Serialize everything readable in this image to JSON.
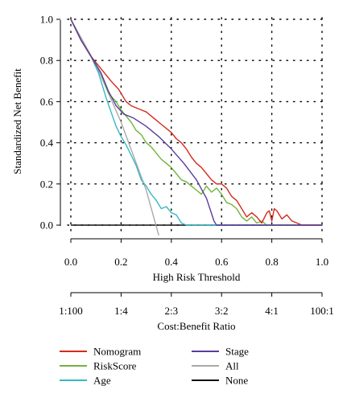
{
  "chart_data": {
    "type": "line",
    "title": "",
    "xlabel": "High Risk Threshold",
    "ylabel": "Standardized Net Benefit",
    "xlim": [
      0.0,
      1.0
    ],
    "ylim": [
      -0.05,
      1.0
    ],
    "x_ticks": [
      "0.0",
      "0.2",
      "0.4",
      "0.6",
      "0.8",
      "1.0"
    ],
    "y_ticks": [
      "0.0",
      "0.2",
      "0.4",
      "0.6",
      "0.8",
      "1.0"
    ],
    "grid": true,
    "secondary_axis": {
      "label": "Cost:Benefit Ratio",
      "ticks": [
        "1:100",
        "1:4",
        "2:3",
        "3:2",
        "4:1",
        "100:1"
      ]
    },
    "legend_position": "bottom",
    "series": [
      {
        "name": "Nomogram",
        "color": "#d42a1e",
        "points": [
          [
            0.0,
            1.0
          ],
          [
            0.04,
            0.9
          ],
          [
            0.08,
            0.82
          ],
          [
            0.12,
            0.76
          ],
          [
            0.16,
            0.7
          ],
          [
            0.19,
            0.66
          ],
          [
            0.2,
            0.64
          ],
          [
            0.22,
            0.6
          ],
          [
            0.24,
            0.58
          ],
          [
            0.26,
            0.57
          ],
          [
            0.28,
            0.56
          ],
          [
            0.3,
            0.55
          ],
          [
            0.32,
            0.53
          ],
          [
            0.34,
            0.51
          ],
          [
            0.36,
            0.49
          ],
          [
            0.38,
            0.47
          ],
          [
            0.4,
            0.45
          ],
          [
            0.42,
            0.42
          ],
          [
            0.44,
            0.4
          ],
          [
            0.46,
            0.37
          ],
          [
            0.48,
            0.33
          ],
          [
            0.5,
            0.3
          ],
          [
            0.52,
            0.28
          ],
          [
            0.54,
            0.25
          ],
          [
            0.56,
            0.22
          ],
          [
            0.58,
            0.2
          ],
          [
            0.6,
            0.2
          ],
          [
            0.62,
            0.18
          ],
          [
            0.64,
            0.14
          ],
          [
            0.66,
            0.12
          ],
          [
            0.68,
            0.08
          ],
          [
            0.7,
            0.04
          ],
          [
            0.72,
            0.06
          ],
          [
            0.74,
            0.04
          ],
          [
            0.76,
            0.01
          ],
          [
            0.78,
            0.06
          ],
          [
            0.79,
            0.07
          ],
          [
            0.8,
            0.02
          ],
          [
            0.81,
            0.08
          ],
          [
            0.82,
            0.07
          ],
          [
            0.84,
            0.03
          ],
          [
            0.86,
            0.05
          ],
          [
            0.88,
            0.02
          ],
          [
            0.9,
            0.01
          ],
          [
            0.92,
            0.0
          ],
          [
            1.0,
            0.0
          ]
        ]
      },
      {
        "name": "RiskScore",
        "color": "#72b43c",
        "points": [
          [
            0.0,
            1.0
          ],
          [
            0.04,
            0.9
          ],
          [
            0.08,
            0.82
          ],
          [
            0.12,
            0.74
          ],
          [
            0.15,
            0.64
          ],
          [
            0.18,
            0.6
          ],
          [
            0.2,
            0.56
          ],
          [
            0.22,
            0.53
          ],
          [
            0.24,
            0.5
          ],
          [
            0.26,
            0.46
          ],
          [
            0.28,
            0.44
          ],
          [
            0.3,
            0.4
          ],
          [
            0.32,
            0.38
          ],
          [
            0.34,
            0.35
          ],
          [
            0.36,
            0.32
          ],
          [
            0.38,
            0.3
          ],
          [
            0.4,
            0.28
          ],
          [
            0.42,
            0.25
          ],
          [
            0.44,
            0.22
          ],
          [
            0.46,
            0.21
          ],
          [
            0.48,
            0.19
          ],
          [
            0.5,
            0.17
          ],
          [
            0.52,
            0.15
          ],
          [
            0.54,
            0.19
          ],
          [
            0.56,
            0.16
          ],
          [
            0.58,
            0.18
          ],
          [
            0.6,
            0.15
          ],
          [
            0.62,
            0.11
          ],
          [
            0.64,
            0.1
          ],
          [
            0.66,
            0.08
          ],
          [
            0.68,
            0.04
          ],
          [
            0.7,
            0.02
          ],
          [
            0.72,
            0.04
          ],
          [
            0.74,
            0.01
          ],
          [
            0.76,
            0.02
          ],
          [
            0.78,
            0.0
          ],
          [
            1.0,
            0.0
          ]
        ]
      },
      {
        "name": "Age",
        "color": "#36b8c4",
        "points": [
          [
            0.0,
            1.0
          ],
          [
            0.04,
            0.9
          ],
          [
            0.08,
            0.82
          ],
          [
            0.11,
            0.74
          ],
          [
            0.14,
            0.62
          ],
          [
            0.16,
            0.55
          ],
          [
            0.18,
            0.48
          ],
          [
            0.2,
            0.43
          ],
          [
            0.22,
            0.39
          ],
          [
            0.24,
            0.34
          ],
          [
            0.26,
            0.29
          ],
          [
            0.28,
            0.22
          ],
          [
            0.3,
            0.19
          ],
          [
            0.32,
            0.15
          ],
          [
            0.34,
            0.12
          ],
          [
            0.36,
            0.08
          ],
          [
            0.38,
            0.09
          ],
          [
            0.4,
            0.06
          ],
          [
            0.42,
            0.05
          ],
          [
            0.44,
            0.01
          ],
          [
            0.46,
            0.0
          ],
          [
            1.0,
            0.0
          ]
        ]
      },
      {
        "name": "Stage",
        "color": "#5a3d9c",
        "points": [
          [
            0.0,
            1.0
          ],
          [
            0.04,
            0.9
          ],
          [
            0.08,
            0.82
          ],
          [
            0.12,
            0.74
          ],
          [
            0.15,
            0.65
          ],
          [
            0.18,
            0.58
          ],
          [
            0.21,
            0.54
          ],
          [
            0.25,
            0.52
          ],
          [
            0.3,
            0.48
          ],
          [
            0.35,
            0.43
          ],
          [
            0.4,
            0.37
          ],
          [
            0.45,
            0.3
          ],
          [
            0.5,
            0.22
          ],
          [
            0.54,
            0.13
          ],
          [
            0.57,
            0.02
          ],
          [
            0.58,
            0.0
          ],
          [
            1.0,
            0.0
          ]
        ]
      },
      {
        "name": "All",
        "color": "#a9a9a9",
        "points": [
          [
            0.0,
            1.0
          ],
          [
            0.1,
            0.78
          ],
          [
            0.2,
            0.5
          ],
          [
            0.3,
            0.17
          ],
          [
            0.35,
            -0.05
          ]
        ]
      },
      {
        "name": "None",
        "color": "#111111",
        "points": [
          [
            0.0,
            0.0
          ],
          [
            1.0,
            0.0
          ]
        ]
      }
    ]
  }
}
